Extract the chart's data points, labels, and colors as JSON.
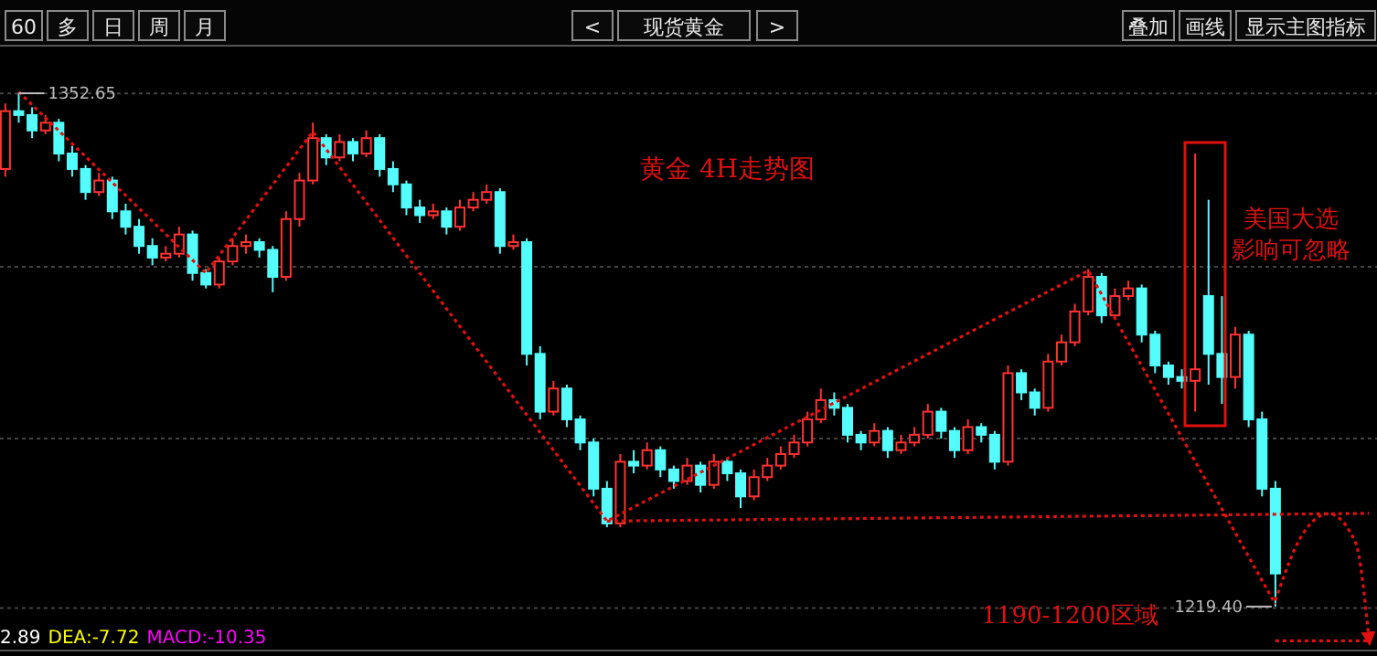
{
  "chart_data": {
    "type": "candlestick",
    "title": "黄金 4H走势图",
    "annotations": [
      "60",
      "多",
      "日",
      "周",
      "月",
      "<",
      "现货黄金",
      ">",
      "叠加",
      "画线",
      "显示主图指标",
      "美国大选影响可忽略",
      "1190-1200区域",
      "2.89 DEA:-7.72 MACD:-10.35",
      "1352.65",
      "1219.40"
    ],
    "categories": [
      null,
      null,
      null,
      null,
      null,
      null,
      null,
      null,
      null,
      null,
      null,
      null,
      null,
      null,
      null,
      null,
      null,
      null,
      null,
      null,
      null,
      null,
      null,
      null,
      null,
      null,
      null,
      null,
      null,
      null,
      null,
      null,
      null,
      null,
      null,
      null,
      null,
      null,
      null,
      null,
      null,
      null,
      null,
      null,
      null,
      null,
      null,
      null,
      null,
      null,
      null,
      null,
      null,
      null,
      null,
      null,
      null,
      null,
      null,
      null,
      null,
      null,
      null,
      null,
      null,
      null,
      null,
      null,
      null,
      null,
      null,
      null,
      null,
      null,
      null,
      null,
      null,
      null,
      null,
      null,
      null,
      null,
      null,
      null,
      null,
      null,
      null,
      null,
      null,
      null,
      null,
      null,
      null,
      null,
      null,
      null,
      null,
      null,
      null,
      null,
      null,
      null,
      null
    ],
    "colors": [
      "#ff3232",
      "#54fcfc",
      "#54fcfc",
      "#ff3232",
      "#54fcfc",
      "#54fcfc",
      "#54fcfc",
      "#ff3232",
      "#54fcfc",
      "#54fcfc",
      "#54fcfc",
      "#54fcfc",
      "#ff3232",
      "#ff3232",
      "#54fcfc",
      "#54fcfc",
      "#ff3232",
      "#ff3232",
      "#ff3232",
      "#54fcfc",
      "#54fcfc",
      "#ff3232",
      "#ff3232",
      "#ff3232",
      "#54fcfc",
      "#ff3232",
      "#54fcfc",
      "#ff3232",
      "#54fcfc",
      "#54fcfc",
      "#54fcfc",
      "#54fcfc",
      "#ff3232",
      "#54fcfc",
      "#ff3232",
      "#ff3232",
      "#ff3232",
      "#54fcfc",
      "#ff3232",
      "#54fcfc",
      "#54fcfc",
      "#ff3232",
      "#54fcfc",
      "#54fcfc",
      "#54fcfc",
      "#54fcfc",
      "#ff3232",
      "#54fcfc",
      "#ff3232",
      "#54fcfc",
      "#54fcfc",
      "#ff3232",
      "#54fcfc",
      "#ff3232",
      "#54fcfc",
      "#54fcfc",
      "#ff3232",
      "#ff3232",
      "#ff3232",
      "#ff3232",
      "#ff3232",
      "#ff3232",
      "#54fcfc",
      "#54fcfc",
      "#54fcfc",
      "#ff3232",
      "#54fcfc",
      "#ff3232",
      "#ff3232",
      "#ff3232",
      "#54fcfc",
      "#54fcfc",
      "#ff3232",
      "#54fcfc",
      "#54fcfc",
      "#ff3232",
      "#54fcfc",
      "#54fcfc",
      "#ff3232",
      "#ff3232",
      "#ff3232",
      "#ff3232",
      "#54fcfc",
      "#ff3232",
      "#ff3232",
      "#54fcfc",
      "#54fcfc",
      "#54fcfc",
      "#54fcfc",
      "#ff3232",
      "#54fcfc",
      "#54fcfc",
      "#ff3232",
      "#54fcfc",
      "#54fcfc",
      "#54fcfc",
      null,
      null,
      null,
      null,
      null,
      null,
      null
    ],
    "ohlc": [
      [
        1333,
        1350,
        1331,
        1348
      ],
      [
        1348,
        1352.65,
        1345,
        1347
      ],
      [
        1347,
        1349,
        1341,
        1343
      ],
      [
        1343,
        1347,
        1342,
        1345
      ],
      [
        1345,
        1346,
        1335,
        1337
      ],
      [
        1337,
        1339,
        1331,
        1333
      ],
      [
        1333,
        1334,
        1325,
        1327
      ],
      [
        1327,
        1332,
        1326,
        1330
      ],
      [
        1330,
        1331,
        1320,
        1322
      ],
      [
        1322,
        1324,
        1316,
        1318
      ],
      [
        1318,
        1320,
        1311,
        1313
      ],
      [
        1313,
        1315,
        1308,
        1310
      ],
      [
        1310,
        1313,
        1309,
        1311
      ],
      [
        1311,
        1318,
        1310,
        1316
      ],
      [
        1316,
        1317,
        1304,
        1306
      ],
      [
        1306,
        1307,
        1302,
        1303
      ],
      [
        1303,
        1310,
        1302,
        1309
      ],
      [
        1309,
        1315,
        1308,
        1313
      ],
      [
        1313,
        1316,
        1311,
        1314
      ],
      [
        1314,
        1315,
        1310,
        1312
      ],
      [
        1312,
        1313,
        1301,
        1305
      ],
      [
        1305,
        1322,
        1304,
        1320
      ],
      [
        1320,
        1332,
        1318,
        1330
      ],
      [
        1330,
        1345,
        1329,
        1341
      ],
      [
        1341,
        1342,
        1334,
        1336
      ],
      [
        1336,
        1342,
        1335,
        1340
      ],
      [
        1340,
        1341,
        1335,
        1337
      ],
      [
        1337,
        1343,
        1336,
        1341
      ],
      [
        1341,
        1342,
        1331,
        1333
      ],
      [
        1333,
        1335,
        1327,
        1329
      ],
      [
        1329,
        1330,
        1321,
        1323
      ],
      [
        1323,
        1325,
        1319,
        1321
      ],
      [
        1321,
        1324,
        1320,
        1322
      ],
      [
        1322,
        1323,
        1316,
        1318
      ],
      [
        1318,
        1325,
        1317,
        1323
      ],
      [
        1323,
        1327,
        1322,
        1325
      ],
      [
        1325,
        1329,
        1324,
        1327
      ],
      [
        1327,
        1328,
        1311,
        1313
      ],
      [
        1313,
        1316,
        1312,
        1314
      ],
      [
        1314,
        1315,
        1282,
        1285
      ],
      [
        1285,
        1287,
        1268,
        1270
      ],
      [
        1270,
        1278,
        1269,
        1276
      ],
      [
        1276,
        1277,
        1266,
        1268
      ],
      [
        1268,
        1269,
        1260,
        1262
      ],
      [
        1262,
        1263,
        1248,
        1250
      ],
      [
        1250,
        1252,
        1240,
        1241
      ],
      [
        1241,
        1259,
        1240,
        1257
      ],
      [
        1257,
        1260,
        1254,
        1256
      ],
      [
        1256,
        1262,
        1255,
        1260
      ],
      [
        1260,
        1261,
        1253,
        1255
      ],
      [
        1255,
        1256,
        1250,
        1252
      ],
      [
        1252,
        1258,
        1251,
        1256
      ],
      [
        1256,
        1257,
        1249,
        1251
      ],
      [
        1251,
        1259,
        1250,
        1257
      ],
      [
        1257,
        1258,
        1252,
        1254
      ],
      [
        1254,
        1255,
        1245,
        1248
      ],
      [
        1248,
        1255,
        1247,
        1253
      ],
      [
        1253,
        1258,
        1252,
        1256
      ],
      [
        1256,
        1261,
        1255,
        1259
      ],
      [
        1259,
        1264,
        1258,
        1262
      ],
      [
        1262,
        1270,
        1261,
        1268
      ],
      [
        1268,
        1276,
        1267,
        1273
      ],
      [
        1273,
        1275,
        1269,
        1271
      ],
      [
        1271,
        1272,
        1262,
        1264
      ],
      [
        1264,
        1265,
        1260,
        1262
      ],
      [
        1262,
        1267,
        1261,
        1265
      ],
      [
        1265,
        1266,
        1258,
        1260
      ],
      [
        1260,
        1264,
        1259,
        1262
      ],
      [
        1262,
        1266,
        1261,
        1264
      ],
      [
        1264,
        1272,
        1263,
        1270
      ],
      [
        1270,
        1271,
        1263,
        1265
      ],
      [
        1265,
        1266,
        1258,
        1260
      ],
      [
        1260,
        1268,
        1259,
        1266
      ],
      [
        1266,
        1267,
        1262,
        1264
      ],
      [
        1264,
        1265,
        1255,
        1257
      ],
      [
        1257,
        1282,
        1256,
        1280
      ],
      [
        1280,
        1281,
        1273,
        1275
      ],
      [
        1275,
        1276,
        1269,
        1271
      ],
      [
        1271,
        1285,
        1270,
        1283
      ],
      [
        1283,
        1290,
        1282,
        1288
      ],
      [
        1288,
        1298,
        1287,
        1296
      ],
      [
        1296,
        1307,
        1295,
        1305
      ],
      [
        1305,
        1306,
        1293,
        1295
      ],
      [
        1295,
        1302,
        1294,
        1300
      ],
      [
        1300,
        1304,
        1299,
        1302
      ],
      [
        1302,
        1303,
        1288,
        1290
      ],
      [
        1290,
        1291,
        1280,
        1282
      ],
      [
        1282,
        1283,
        1277,
        1279
      ],
      [
        1279,
        1281,
        1276,
        1278
      ],
      [
        1278,
        1337,
        1270,
        1281
      ],
      [
        1300,
        1325,
        1277,
        1285
      ],
      [
        1285,
        1300,
        1272,
        1279
      ],
      [
        1279,
        1292,
        1276,
        1290
      ],
      [
        1290,
        1291,
        1266,
        1268
      ],
      [
        1268,
        1270,
        1248,
        1250
      ],
      [
        1250,
        1252,
        1219.4,
        1228
      ],
      null,
      null,
      null,
      null,
      null,
      null,
      null
    ],
    "series": [
      {
        "type": "line",
        "color": "#e01010",
        "line_style": "dotted",
        "values": [
          null,
          1353,
          null,
          null,
          null,
          null,
          null,
          null,
          null,
          null,
          null,
          null,
          null,
          null,
          null,
          1306,
          null,
          null,
          null,
          null,
          null,
          null,
          null,
          1342.7,
          null,
          null,
          null,
          null,
          null,
          null,
          null,
          null,
          null,
          null,
          null,
          null,
          null,
          null,
          null,
          null,
          null,
          null,
          null,
          null,
          null,
          1241.6,
          null,
          null,
          null,
          null,
          null,
          null,
          null,
          null,
          null,
          null,
          null,
          null,
          null,
          null,
          null,
          null,
          null,
          null,
          null,
          null,
          null,
          null,
          null,
          null,
          null,
          null,
          null,
          null,
          null,
          null,
          null,
          null,
          null,
          null,
          null,
          1306.6,
          null,
          null,
          null,
          null,
          null,
          null,
          null,
          null,
          null,
          null,
          null,
          null,
          null,
          1220,
          null,
          null,
          null,
          null,
          null,
          null,
          null
        ]
      },
      {
        "type": "line",
        "color": "#e01010",
        "line_style": "dotted",
        "values": [
          null,
          null,
          null,
          null,
          null,
          null,
          null,
          null,
          null,
          null,
          null,
          null,
          null,
          null,
          null,
          null,
          null,
          null,
          null,
          null,
          null,
          null,
          null,
          null,
          null,
          null,
          null,
          null,
          null,
          null,
          null,
          null,
          null,
          null,
          null,
          null,
          null,
          null,
          null,
          null,
          null,
          null,
          null,
          null,
          null,
          1241.6,
          null,
          null,
          null,
          null,
          null,
          null,
          null,
          null,
          null,
          null,
          null,
          null,
          null,
          null,
          null,
          null,
          null,
          null,
          null,
          null,
          null,
          null,
          null,
          null,
          null,
          null,
          null,
          null,
          null,
          null,
          null,
          null,
          null,
          null,
          null,
          null,
          null,
          null,
          null,
          null,
          null,
          null,
          null,
          null,
          null,
          null,
          null,
          null,
          null,
          null,
          null,
          null,
          null,
          null,
          null,
          null,
          1243.6
        ]
      },
      {
        "type": "line",
        "color": "#e01010",
        "line_style": "dotted",
        "values": [
          null,
          null,
          null,
          null,
          null,
          null,
          null,
          null,
          null,
          null,
          null,
          null,
          null,
          null,
          null,
          null,
          null,
          null,
          null,
          null,
          null,
          null,
          null,
          null,
          null,
          null,
          null,
          null,
          null,
          null,
          null,
          null,
          null,
          null,
          null,
          null,
          null,
          null,
          null,
          null,
          null,
          null,
          null,
          null,
          null,
          null,
          null,
          null,
          null,
          null,
          null,
          null,
          null,
          null,
          null,
          null,
          null,
          null,
          null,
          null,
          null,
          null,
          null,
          null,
          null,
          null,
          null,
          null,
          null,
          null,
          null,
          null,
          null,
          null,
          null,
          null,
          null,
          null,
          null,
          null,
          null,
          null,
          null,
          null,
          null,
          null,
          null,
          null,
          null,
          null,
          null,
          null,
          null,
          null,
          null,
          1221,
          null,
          1238,
          null,
          1243.5,
          null,
          1236,
          1211
        ]
      },
      {
        "type": "line",
        "color": "#e01010",
        "line_style": "dotted",
        "values": [
          null,
          null,
          null,
          null,
          null,
          null,
          null,
          null,
          null,
          null,
          null,
          null,
          null,
          null,
          null,
          null,
          null,
          null,
          null,
          null,
          null,
          null,
          null,
          null,
          null,
          null,
          null,
          null,
          null,
          null,
          null,
          null,
          null,
          null,
          null,
          null,
          null,
          null,
          null,
          null,
          null,
          null,
          null,
          null,
          null,
          null,
          null,
          null,
          null,
          null,
          null,
          null,
          null,
          null,
          null,
          null,
          null,
          null,
          null,
          null,
          null,
          null,
          null,
          null,
          null,
          null,
          null,
          null,
          null,
          null,
          null,
          null,
          null,
          null,
          null,
          null,
          null,
          null,
          null,
          null,
          null,
          null,
          null,
          null,
          null,
          null,
          null,
          null,
          null,
          null,
          null,
          null,
          null,
          null,
          null,
          1210.5,
          null,
          null,
          null,
          null,
          null,
          null,
          1210.5
        ]
      }
    ],
    "ylim": [
      1208,
      1365
    ],
    "yticks": [
      {
        "value": 1352.6,
        "label": null
      },
      {
        "value": 1307.6,
        "label": null
      },
      {
        "value": 1263,
        "label": null
      },
      {
        "value": 1219,
        "label": null
      }
    ],
    "grid": "y"
  }
}
